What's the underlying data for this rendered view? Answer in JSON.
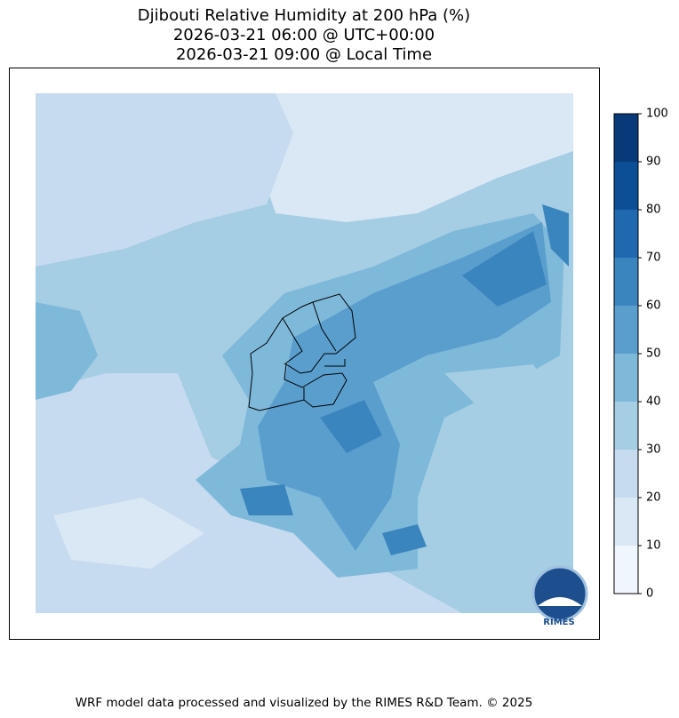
{
  "title_lines": [
    "Djibouti Relative Humidity at 200 hPa (%)",
    "2026-03-21 06:00 @ UTC+00:00",
    "2026-03-21 09:00 @ Local Time"
  ],
  "colorbar": {
    "ticks": [
      0,
      10,
      20,
      30,
      40,
      50,
      60,
      70,
      80,
      90,
      100
    ],
    "colors": [
      "#f0f6fd",
      "#dae8f5",
      "#c6dbef",
      "#a5cde3",
      "#7fb9da",
      "#5a9ecd",
      "#3b85bf",
      "#2068af",
      "#0d4f96",
      "#083a7a"
    ]
  },
  "logo": "RIMES",
  "footer": "WRF model data processed and visualized by the RIMES R&D Team. © 2025"
}
